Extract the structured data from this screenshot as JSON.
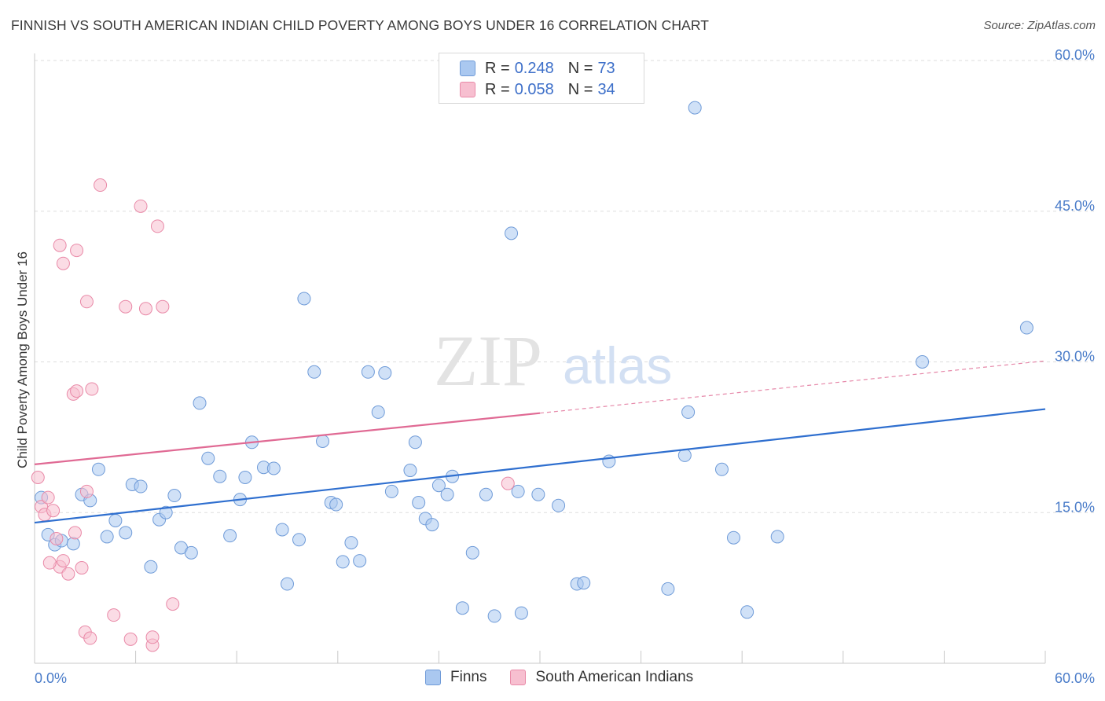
{
  "header": {
    "title": "FINNISH VS SOUTH AMERICAN INDIAN CHILD POVERTY AMONG BOYS UNDER 16 CORRELATION CHART",
    "source": "Source: ZipAtlas.com"
  },
  "watermark": {
    "zip": "ZIP",
    "atlas": "atlas"
  },
  "legend": {
    "finns": {
      "r_label": "R =",
      "r_value": "0.248",
      "n_label": "N =",
      "n_value": "73"
    },
    "sai": {
      "r_label": "R =",
      "r_value": "0.058",
      "n_label": "N =",
      "n_value": "34"
    }
  },
  "bottom_legend": {
    "finns": "Finns",
    "sai": "South American Indians"
  },
  "colors": {
    "finns_fill": "#aac8f0",
    "finns_stroke": "#6f9bd8",
    "finns_line": "#2f6fcf",
    "sai_fill": "#f7bfd0",
    "sai_stroke": "#e98aa8",
    "sai_line": "#e06a94",
    "tick_text": "#4a7cc9",
    "grid": "#dddddd"
  },
  "chart_data": {
    "type": "scatter",
    "title": "FINNISH VS SOUTH AMERICAN INDIAN CHILD POVERTY AMONG BOYS UNDER 16 CORRELATION CHART",
    "ylabel": "Child Poverty Among Boys Under 16",
    "xlim": [
      0,
      60
    ],
    "ylim": [
      0,
      60
    ],
    "x_tick_labels": [
      "0.0%",
      "60.0%"
    ],
    "y_ticks": [
      15,
      30,
      45,
      60
    ],
    "y_tick_labels": [
      "15.0%",
      "30.0%",
      "45.0%",
      "60.0%"
    ],
    "grid": true,
    "legend_position": "top-center",
    "series": [
      {
        "name": "Finns",
        "points": [
          [
            0.4,
            16.5
          ],
          [
            0.8,
            12.8
          ],
          [
            1.2,
            11.8
          ],
          [
            1.6,
            12.2
          ],
          [
            2.3,
            11.9
          ],
          [
            2.8,
            16.8
          ],
          [
            3.3,
            16.2
          ],
          [
            3.8,
            19.3
          ],
          [
            4.3,
            12.6
          ],
          [
            4.8,
            14.2
          ],
          [
            5.4,
            13.0
          ],
          [
            5.8,
            17.8
          ],
          [
            6.3,
            17.6
          ],
          [
            6.9,
            9.6
          ],
          [
            7.4,
            14.3
          ],
          [
            7.8,
            15.0
          ],
          [
            8.3,
            16.7
          ],
          [
            8.7,
            11.5
          ],
          [
            9.3,
            11.0
          ],
          [
            9.8,
            25.9
          ],
          [
            10.3,
            20.4
          ],
          [
            11.0,
            18.6
          ],
          [
            11.6,
            12.7
          ],
          [
            12.2,
            16.3
          ],
          [
            12.5,
            18.5
          ],
          [
            12.9,
            22.0
          ],
          [
            13.6,
            19.5
          ],
          [
            14.2,
            19.4
          ],
          [
            14.7,
            13.3
          ],
          [
            15.0,
            7.9
          ],
          [
            15.7,
            12.3
          ],
          [
            16.0,
            36.3
          ],
          [
            16.6,
            29.0
          ],
          [
            17.1,
            22.1
          ],
          [
            17.6,
            16.0
          ],
          [
            17.9,
            15.8
          ],
          [
            18.3,
            10.1
          ],
          [
            18.8,
            12.0
          ],
          [
            19.3,
            10.2
          ],
          [
            19.8,
            29.0
          ],
          [
            20.4,
            25.0
          ],
          [
            20.8,
            28.9
          ],
          [
            21.2,
            17.1
          ],
          [
            22.6,
            22.0
          ],
          [
            22.8,
            16.0
          ],
          [
            22.3,
            19.2
          ],
          [
            23.2,
            14.4
          ],
          [
            23.6,
            13.8
          ],
          [
            24.0,
            17.7
          ],
          [
            24.5,
            16.8
          ],
          [
            24.8,
            18.6
          ],
          [
            26.0,
            11.0
          ],
          [
            25.4,
            5.5
          ],
          [
            26.8,
            16.8
          ],
          [
            27.3,
            4.7
          ],
          [
            28.3,
            42.8
          ],
          [
            28.7,
            17.1
          ],
          [
            28.9,
            5.0
          ],
          [
            29.9,
            16.8
          ],
          [
            31.1,
            15.7
          ],
          [
            32.2,
            7.9
          ],
          [
            32.6,
            8.0
          ],
          [
            34.1,
            20.1
          ],
          [
            37.6,
            7.4
          ],
          [
            38.6,
            20.7
          ],
          [
            38.8,
            25.0
          ],
          [
            39.2,
            55.3
          ],
          [
            40.8,
            19.3
          ],
          [
            42.3,
            5.1
          ],
          [
            44.1,
            12.6
          ],
          [
            52.7,
            30.0
          ],
          [
            58.9,
            33.4
          ],
          [
            41.5,
            12.5
          ]
        ],
        "trend": {
          "x": [
            0,
            60
          ],
          "y": [
            14.0,
            25.3
          ]
        }
      },
      {
        "name": "South American Indians",
        "points": [
          [
            0.2,
            18.5
          ],
          [
            0.4,
            15.6
          ],
          [
            0.6,
            14.8
          ],
          [
            0.8,
            16.5
          ],
          [
            1.1,
            15.2
          ],
          [
            1.3,
            12.4
          ],
          [
            1.5,
            9.6
          ],
          [
            1.7,
            10.2
          ],
          [
            1.5,
            41.6
          ],
          [
            1.7,
            39.8
          ],
          [
            2.0,
            8.9
          ],
          [
            2.3,
            26.8
          ],
          [
            2.4,
            13.0
          ],
          [
            2.5,
            27.1
          ],
          [
            2.5,
            41.1
          ],
          [
            3.0,
            3.1
          ],
          [
            3.1,
            17.1
          ],
          [
            3.1,
            36.0
          ],
          [
            3.3,
            2.5
          ],
          [
            3.4,
            27.3
          ],
          [
            3.9,
            47.6
          ],
          [
            4.7,
            4.8
          ],
          [
            5.4,
            35.5
          ],
          [
            5.7,
            2.4
          ],
          [
            6.3,
            45.5
          ],
          [
            6.6,
            35.3
          ],
          [
            7.0,
            1.8
          ],
          [
            7.3,
            43.5
          ],
          [
            7.6,
            35.5
          ],
          [
            8.2,
            5.9
          ],
          [
            7.0,
            2.6
          ],
          [
            28.1,
            17.9
          ],
          [
            0.9,
            10.0
          ],
          [
            2.8,
            9.5
          ]
        ],
        "trend": {
          "x": [
            0,
            30
          ],
          "y": [
            19.8,
            24.9
          ]
        },
        "trend_dashed": {
          "x": [
            30,
            60
          ],
          "y": [
            24.9,
            30.1
          ]
        }
      }
    ]
  }
}
